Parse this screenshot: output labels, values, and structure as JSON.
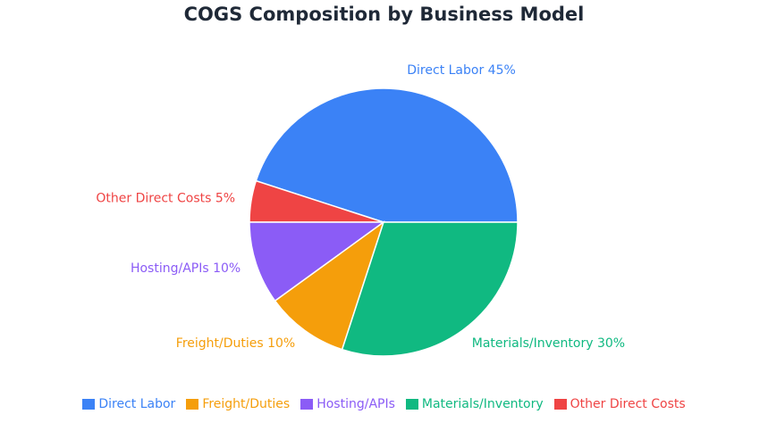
{
  "chart_data": {
    "type": "pie",
    "title": "COGS Composition by Business Model",
    "unit": "%",
    "slices": [
      {
        "name": "Direct Labor",
        "value": 45,
        "label": "Direct Labor 45%",
        "color": "#3b82f6"
      },
      {
        "name": "Other Direct Costs",
        "value": 5,
        "label": "Other Direct Costs 5%",
        "color": "#ef4444"
      },
      {
        "name": "Hosting/APIs",
        "value": 10,
        "label": "Hosting/APIs 10%",
        "color": "#8b5cf6"
      },
      {
        "name": "Freight/Duties",
        "value": 10,
        "label": "Freight/Duties 10%",
        "color": "#f59e0b"
      },
      {
        "name": "Materials/Inventory",
        "value": 30,
        "label": "Materials/Inventory 30%",
        "color": "#10b981"
      }
    ],
    "legend": {
      "placement": "bottom",
      "entries": [
        {
          "name": "Direct Labor",
          "color": "#3b82f6"
        },
        {
          "name": "Freight/Duties",
          "color": "#f59e0b"
        },
        {
          "name": "Hosting/APIs",
          "color": "#8b5cf6"
        },
        {
          "name": "Materials/Inventory",
          "color": "#10b981"
        },
        {
          "name": "Other Direct Costs",
          "color": "#ef4444"
        }
      ]
    }
  }
}
